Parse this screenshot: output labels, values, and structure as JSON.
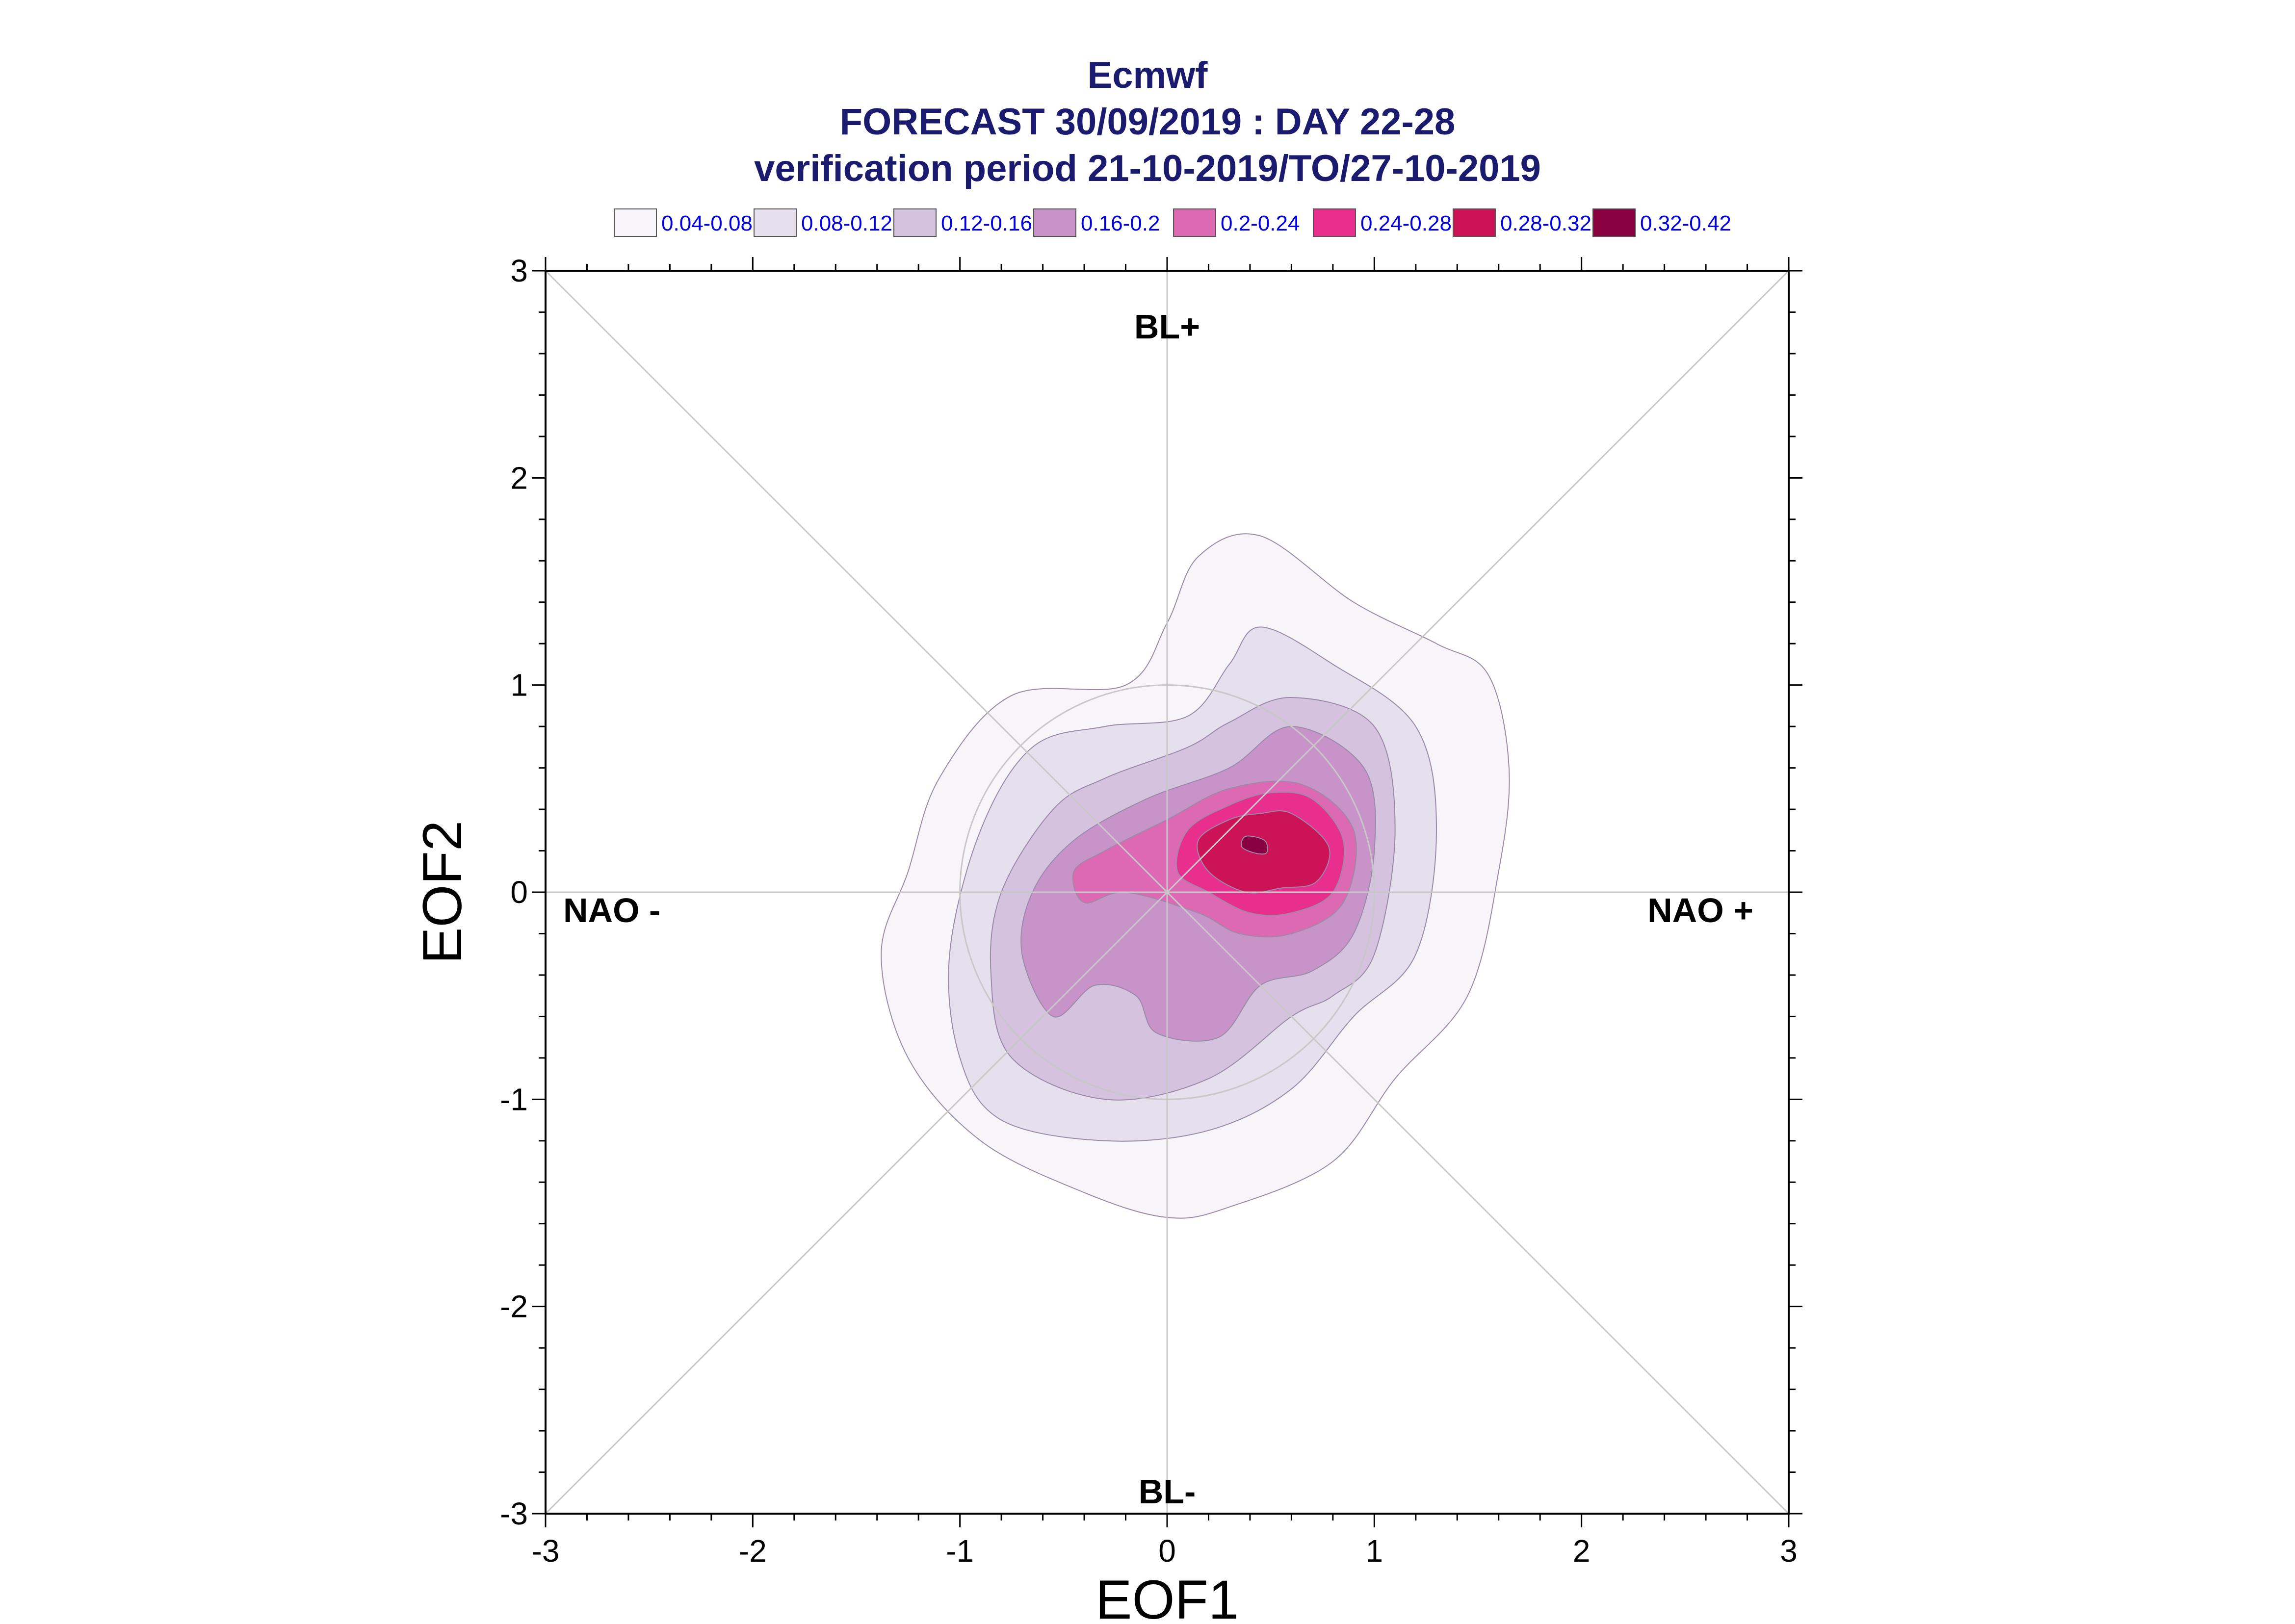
{
  "chart_data": {
    "type": "contour",
    "title": "Ecmwf",
    "subtitle_lines": [
      "FORECAST 30/09/2019 : DAY 22-28",
      "verification period 21-10-2019/TO/27-10-2019"
    ],
    "xlabel": "EOF1",
    "ylabel": "EOF2",
    "xlim": [
      -3,
      3
    ],
    "ylim": [
      -3,
      3
    ],
    "xticks": [
      "-3",
      "-2",
      "-1",
      "0",
      "1",
      "2",
      "3"
    ],
    "yticks": [
      "-3",
      "-2",
      "-1",
      "0",
      "1",
      "2",
      "3"
    ],
    "regime_labels": {
      "top": "BL+",
      "bottom": "BL-",
      "left": "NAO -",
      "right": "NAO +"
    },
    "legend": [
      {
        "label": "0.04-0.08",
        "color": "#f7f5fa"
      },
      {
        "label": "0.08-0.12",
        "color": "#e6dfee"
      },
      {
        "label": "0.12-0.16",
        "color": "#d5c2df"
      },
      {
        "label": "0.16-0.2",
        "color": "#c893c8"
      },
      {
        "label": "0.2-0.24",
        "color": "#dd68b4"
      },
      {
        "label": "0.24-0.28",
        "color": "#e82f8e"
      },
      {
        "label": "0.28-0.32",
        "color": "#cc1358"
      },
      {
        "label": "0.32-0.42",
        "color": "#88003f"
      }
    ],
    "reference_circle_radius": 1,
    "diagonals": true,
    "grid": false,
    "contours": [
      {
        "level": "0.04-0.08",
        "points": [
          [
            0.45,
            1.72
          ],
          [
            0.9,
            1.4
          ],
          [
            1.3,
            1.2
          ],
          [
            1.55,
            1.05
          ],
          [
            1.65,
            0.6
          ],
          [
            1.6,
            0.1
          ],
          [
            1.45,
            -0.5
          ],
          [
            1.1,
            -0.9
          ],
          [
            0.8,
            -1.3
          ],
          [
            0.3,
            -1.52
          ],
          [
            0,
            -1.57
          ],
          [
            -0.4,
            -1.45
          ],
          [
            -0.9,
            -1.2
          ],
          [
            -1.25,
            -0.8
          ],
          [
            -1.38,
            -0.3
          ],
          [
            -1.25,
            0.1
          ],
          [
            -1.1,
            0.55
          ],
          [
            -0.75,
            0.95
          ],
          [
            -0.2,
            1.0
          ],
          [
            0,
            1.3
          ],
          [
            0.15,
            1.62
          ]
        ]
      },
      {
        "level": "0.08-0.12",
        "points": [
          [
            0.45,
            1.28
          ],
          [
            0.8,
            1.1
          ],
          [
            1.2,
            0.8
          ],
          [
            1.3,
            0.3
          ],
          [
            1.2,
            -0.3
          ],
          [
            0.9,
            -0.6
          ],
          [
            0.6,
            -0.95
          ],
          [
            0.2,
            -1.15
          ],
          [
            -0.3,
            -1.2
          ],
          [
            -0.8,
            -1.1
          ],
          [
            -1.0,
            -0.8
          ],
          [
            -1.05,
            -0.3
          ],
          [
            -0.9,
            0.3
          ],
          [
            -0.65,
            0.7
          ],
          [
            -0.3,
            0.8
          ],
          [
            0.1,
            0.85
          ],
          [
            0.3,
            1.1
          ]
        ]
      },
      {
        "level": "0.12-0.16",
        "points": [
          [
            0.6,
            0.94
          ],
          [
            1.0,
            0.8
          ],
          [
            1.1,
            0.3
          ],
          [
            1.0,
            -0.3
          ],
          [
            0.8,
            -0.5
          ],
          [
            0.6,
            -0.6
          ],
          [
            0.2,
            -0.9
          ],
          [
            -0.3,
            -1.0
          ],
          [
            -0.75,
            -0.8
          ],
          [
            -0.85,
            -0.4
          ],
          [
            -0.8,
            0.0
          ],
          [
            -0.55,
            0.4
          ],
          [
            -0.3,
            0.55
          ],
          [
            0.1,
            0.7
          ],
          [
            0.3,
            0.82
          ]
        ]
      },
      {
        "level": "0.16-0.2",
        "points": [
          [
            0.6,
            0.8
          ],
          [
            0.95,
            0.6
          ],
          [
            1.0,
            0.2
          ],
          [
            0.9,
            -0.2
          ],
          [
            0.7,
            -0.38
          ],
          [
            0.45,
            -0.45
          ],
          [
            0.25,
            -0.7
          ],
          [
            -0.05,
            -0.68
          ],
          [
            -0.15,
            -0.5
          ],
          [
            -0.35,
            -0.45
          ],
          [
            -0.55,
            -0.6
          ],
          [
            -0.7,
            -0.3
          ],
          [
            -0.65,
            0.0
          ],
          [
            -0.45,
            0.25
          ],
          [
            -0.1,
            0.45
          ],
          [
            0.3,
            0.6
          ]
        ]
      },
      {
        "level": "0.2-0.24",
        "points": [
          [
            0.65,
            0.52
          ],
          [
            0.9,
            0.3
          ],
          [
            0.85,
            -0.05
          ],
          [
            0.6,
            -0.2
          ],
          [
            0.35,
            -0.2
          ],
          [
            0.15,
            -0.1
          ],
          [
            -0.2,
            0.0
          ],
          [
            -0.4,
            -0.05
          ],
          [
            -0.45,
            0.1
          ],
          [
            -0.3,
            0.2
          ],
          [
            0.0,
            0.35
          ],
          [
            0.3,
            0.5
          ]
        ]
      },
      {
        "level": "0.24-0.28",
        "points": [
          [
            0.7,
            0.45
          ],
          [
            0.85,
            0.25
          ],
          [
            0.8,
            0.0
          ],
          [
            0.6,
            -0.1
          ],
          [
            0.4,
            -0.1
          ],
          [
            0.2,
            0.0
          ],
          [
            0.05,
            0.1
          ],
          [
            0.1,
            0.3
          ],
          [
            0.3,
            0.42
          ],
          [
            0.5,
            0.48
          ]
        ]
      },
      {
        "level": "0.28-0.32",
        "points": [
          [
            0.6,
            0.38
          ],
          [
            0.78,
            0.22
          ],
          [
            0.72,
            0.05
          ],
          [
            0.55,
            0.02
          ],
          [
            0.38,
            0.0
          ],
          [
            0.2,
            0.1
          ],
          [
            0.15,
            0.25
          ],
          [
            0.3,
            0.35
          ],
          [
            0.45,
            0.38
          ]
        ]
      },
      {
        "level": "0.32-0.42",
        "points": [
          [
            0.38,
            0.27
          ],
          [
            0.47,
            0.25
          ],
          [
            0.48,
            0.19
          ],
          [
            0.42,
            0.19
          ],
          [
            0.36,
            0.22
          ]
        ]
      }
    ]
  }
}
